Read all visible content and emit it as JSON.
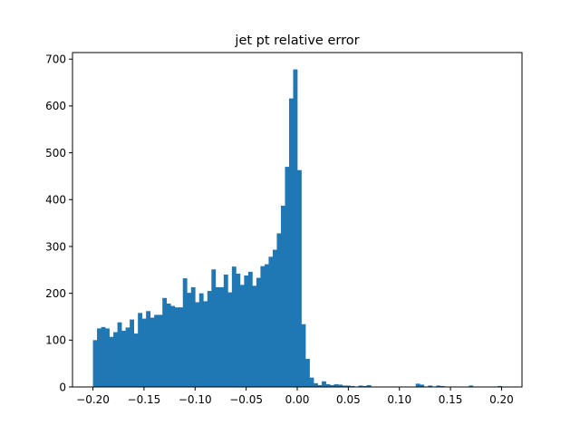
{
  "chart_data": {
    "type": "bar",
    "title": "jet pt relative error",
    "xlabel": "",
    "ylabel": "",
    "xlim": [
      -0.22,
      0.22
    ],
    "ylim": [
      0,
      714
    ],
    "bin_range": [
      -0.2,
      0.2
    ],
    "bin_width": 0.004,
    "bar_color": "#1f77b4",
    "grid": false,
    "x_ticks": [
      -0.2,
      -0.15,
      -0.1,
      -0.05,
      0.0,
      0.05,
      0.1,
      0.15,
      0.2
    ],
    "x_tick_labels": [
      "−0.20",
      "−0.15",
      "−0.10",
      "−0.05",
      "0.00",
      "0.05",
      "0.10",
      "0.15",
      "0.20"
    ],
    "y_ticks": [
      0,
      100,
      200,
      300,
      400,
      500,
      600,
      700
    ],
    "y_tick_labels": [
      "0",
      "100",
      "200",
      "300",
      "400",
      "500",
      "600",
      "700"
    ],
    "values": [
      100,
      125,
      128,
      125,
      107,
      117,
      138,
      120,
      127,
      144,
      114,
      158,
      146,
      162,
      148,
      154,
      154,
      190,
      178,
      173,
      170,
      170,
      232,
      201,
      213,
      181,
      200,
      183,
      205,
      251,
      213,
      213,
      240,
      202,
      257,
      242,
      218,
      238,
      246,
      216,
      233,
      258,
      262,
      278,
      293,
      328,
      387,
      470,
      616,
      678,
      463,
      134,
      60,
      20,
      8,
      4,
      12,
      6,
      4,
      6,
      5,
      3,
      3,
      2,
      1,
      3,
      2,
      4,
      0,
      0,
      0,
      0,
      0,
      1,
      0,
      0,
      0,
      0,
      0,
      7,
      5,
      0,
      3,
      0,
      3,
      2,
      0,
      0,
      0,
      0,
      0,
      0,
      3,
      0,
      0,
      0,
      0,
      0,
      0,
      2
    ]
  }
}
